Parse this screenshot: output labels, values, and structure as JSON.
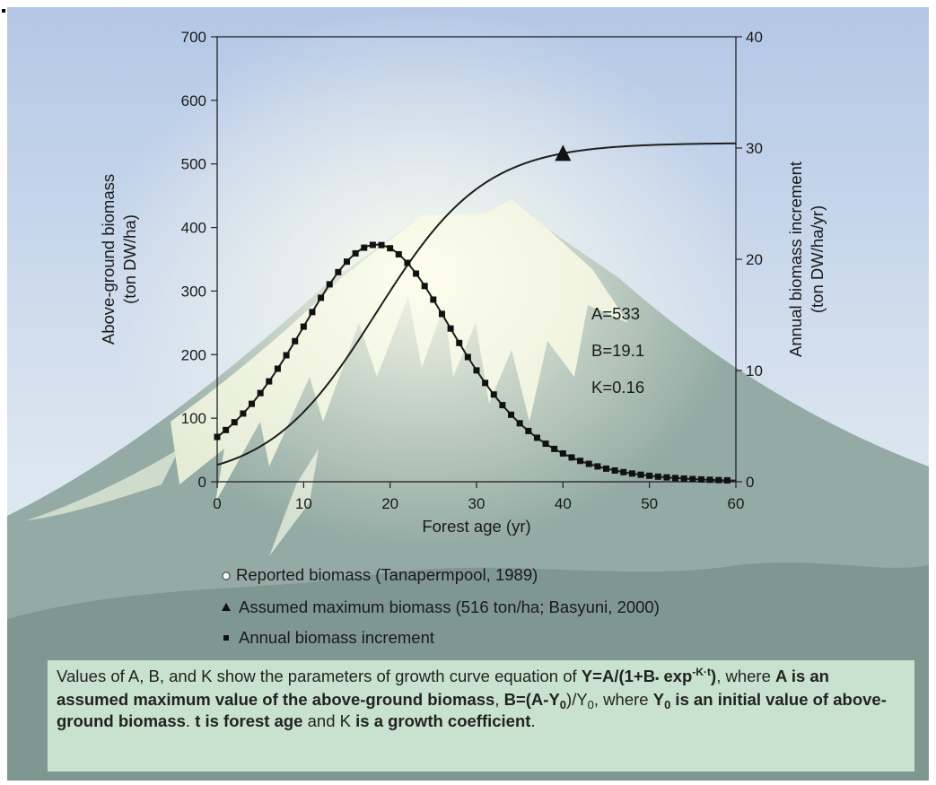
{
  "chart_data": {
    "type": "line",
    "xlabel": "Forest age (yr)",
    "ylabel_left": [
      "Above-ground biomass",
      "(ton DW/ha)"
    ],
    "ylabel_right": [
      "Annual biomass increment",
      "(ton DW/ha/yr)"
    ],
    "xlim": [
      0,
      60
    ],
    "xticks": [
      "0",
      "10",
      "20",
      "30",
      "40",
      "50",
      "60"
    ],
    "ylim_left": [
      0,
      700
    ],
    "yticks_left": [
      "0",
      "100",
      "200",
      "300",
      "400",
      "500",
      "600",
      "700"
    ],
    "ylim_right": [
      0,
      40
    ],
    "yticks_right": [
      "0",
      "10",
      "20",
      "30",
      "40"
    ],
    "grid": false,
    "parameters": {
      "A": 533,
      "B": 19.1,
      "K": 0.16
    },
    "param_labels": [
      "A=533",
      "B=19.1",
      "K=0.16"
    ],
    "series": [
      {
        "name": "Reported biomass (Tanapermpool, 1989)",
        "axis": "left",
        "marker": "open-circle",
        "x": [],
        "y": []
      },
      {
        "name": "Assumed maximum biomass (516 ton/ha; Basyuni, 2000)",
        "axis": "left",
        "marker": "triangle",
        "x": [
          40
        ],
        "y": [
          516
        ]
      },
      {
        "name": "Annual biomass increment",
        "axis": "right",
        "marker": "square",
        "x_start": 0,
        "x_step": 1,
        "count": 60
      }
    ]
  },
  "note": {
    "s1": "Values of A, B, and K show the parameters of growth curve equation of ",
    "eq1": "Y=A/(1+B",
    "eq_dot": "▪",
    "eq2": " exp",
    "eq_sup": "-K·t",
    "eq3": ")",
    "s2": ", where ",
    "s3": "A is an assumed maximum value of the above-ground biomass",
    "s4": ", ",
    "s5": "B=(A-Y",
    "s5_sub": "0",
    "s6": ")/Y",
    "s6_sub": "0",
    "s7": ", where ",
    "s8": "Y",
    "s8_sub": "0",
    "s9": " is an initial value of above-ground biomass",
    "s10": ". ",
    "s11": "t is forest age",
    "s12": " and K ",
    "s13": "is a growth coefficient",
    "s14": "."
  },
  "colors": {
    "sky_top": "#b7c9e6",
    "mountain": "#8aa49c",
    "snow": "#f3f6de",
    "note_bg": "#c9e2cf"
  }
}
